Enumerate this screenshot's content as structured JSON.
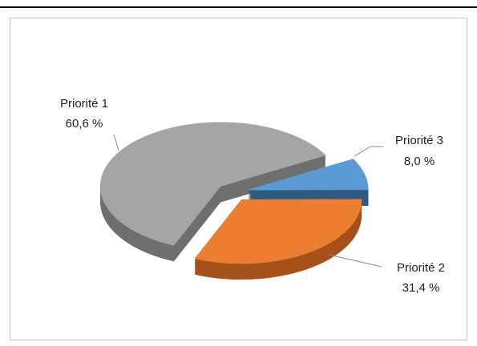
{
  "chart_data": {
    "type": "pie",
    "categories": [
      "Priorité 1",
      "Priorité 2",
      "Priorité 3"
    ],
    "values": [
      60.6,
      31.4,
      8.0
    ],
    "value_labels": [
      "60,6 %",
      "31,4 %",
      "8,0 %"
    ],
    "colors": [
      "#a5a5a5",
      "#ed7d31",
      "#5b9bd5"
    ],
    "side_colors": [
      "#6f6f6f",
      "#a4521b",
      "#2e5a82"
    ]
  }
}
